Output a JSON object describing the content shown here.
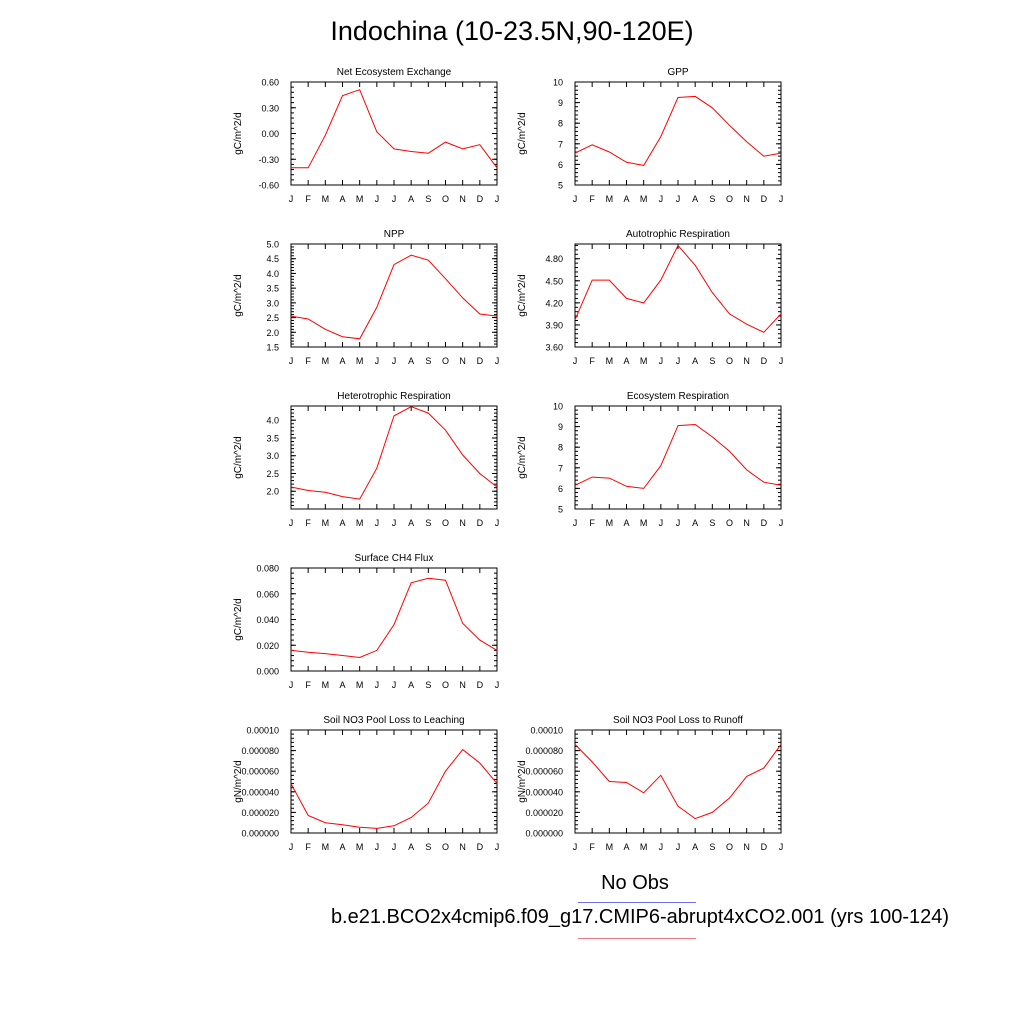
{
  "title": "Indochina (10-23.5N,90-120E)",
  "legend": {
    "obs_label": "No Obs",
    "model_label": "b.e21.BCO2x4cmip6.f09_g17.CMIP6-abrupt4xCO2.001 (yrs 100-124)",
    "obs_color": "#6f72e6",
    "model_color": "#f07a86"
  },
  "line_color": "#ff0000",
  "chart_data": [
    {
      "type": "line",
      "title": "Net Ecosystem Exchange",
      "ylabel": "gC/m^2/d",
      "categories": [
        "J",
        "F",
        "M",
        "A",
        "M",
        "J",
        "J",
        "A",
        "S",
        "O",
        "N",
        "D",
        "J"
      ],
      "values": [
        -0.4,
        -0.4,
        -0.02,
        0.44,
        0.51,
        0.02,
        -0.18,
        -0.21,
        -0.23,
        -0.1,
        -0.18,
        -0.13,
        -0.4
      ],
      "ylim": [
        -0.6,
        0.6
      ],
      "yticks": [
        "-0.60",
        "-0.30",
        "0.00",
        "0.30",
        "0.60"
      ]
    },
    {
      "type": "line",
      "title": "GPP",
      "ylabel": "gC/m^2/d",
      "categories": [
        "J",
        "F",
        "M",
        "A",
        "M",
        "J",
        "J",
        "A",
        "S",
        "O",
        "N",
        "D",
        "J"
      ],
      "values": [
        6.55,
        6.95,
        6.6,
        6.1,
        5.95,
        7.35,
        9.25,
        9.3,
        8.75,
        7.9,
        7.1,
        6.4,
        6.55
      ],
      "ylim": [
        5,
        10
      ],
      "yticks": [
        "5",
        "6",
        "7",
        "8",
        "9",
        "10"
      ]
    },
    {
      "type": "line",
      "title": "NPP",
      "ylabel": "gC/m^2/d",
      "categories": [
        "J",
        "F",
        "M",
        "A",
        "M",
        "J",
        "J",
        "A",
        "S",
        "O",
        "N",
        "D",
        "J"
      ],
      "values": [
        2.55,
        2.45,
        2.1,
        1.85,
        1.78,
        2.85,
        4.3,
        4.62,
        4.45,
        3.82,
        3.17,
        2.62,
        2.55
      ],
      "ylim": [
        1.5,
        5.0
      ],
      "yticks": [
        "1.5",
        "2.0",
        "2.5",
        "3.0",
        "3.5",
        "4.0",
        "4.5",
        "5.0"
      ]
    },
    {
      "type": "line",
      "title": "Autotrophic Respiration",
      "ylabel": "gC/m^2/d",
      "categories": [
        "J",
        "F",
        "M",
        "A",
        "M",
        "J",
        "J",
        "A",
        "S",
        "O",
        "N",
        "D",
        "J"
      ],
      "values": [
        3.97,
        4.51,
        4.51,
        4.26,
        4.2,
        4.51,
        4.98,
        4.71,
        4.34,
        4.05,
        3.91,
        3.8,
        4.05
      ],
      "ylim": [
        3.6,
        5.0
      ],
      "yticks": [
        "3.60",
        "3.90",
        "4.20",
        "4.50",
        "4.80"
      ]
    },
    {
      "type": "line",
      "title": "Heterotrophic Respiration",
      "ylabel": "gC/m^2/d",
      "categories": [
        "J",
        "F",
        "M",
        "A",
        "M",
        "J",
        "J",
        "A",
        "S",
        "O",
        "N",
        "D",
        "J"
      ],
      "values": [
        2.12,
        2.02,
        1.97,
        1.85,
        1.78,
        2.65,
        4.12,
        4.38,
        4.2,
        3.72,
        3.02,
        2.5,
        2.12
      ],
      "ylim": [
        1.5,
        4.4
      ],
      "yticks": [
        "2.0",
        "2.5",
        "3.0",
        "3.5",
        "4.0"
      ]
    },
    {
      "type": "line",
      "title": "Ecosystem Respiration",
      "ylabel": "gC/m^2/d",
      "categories": [
        "J",
        "F",
        "M",
        "A",
        "M",
        "J",
        "J",
        "A",
        "S",
        "O",
        "N",
        "D",
        "J"
      ],
      "values": [
        6.15,
        6.55,
        6.5,
        6.1,
        6.0,
        7.1,
        9.05,
        9.1,
        8.5,
        7.8,
        6.9,
        6.3,
        6.15
      ],
      "ylim": [
        5,
        10
      ],
      "yticks": [
        "5",
        "6",
        "7",
        "8",
        "9",
        "10"
      ]
    },
    {
      "type": "line",
      "title": "Surface CH4 Flux",
      "ylabel": "gC/m^2/d",
      "categories": [
        "J",
        "F",
        "M",
        "A",
        "M",
        "J",
        "J",
        "A",
        "S",
        "O",
        "N",
        "D",
        "J"
      ],
      "values": [
        0.016,
        0.0145,
        0.0135,
        0.012,
        0.0105,
        0.016,
        0.036,
        0.0685,
        0.072,
        0.0705,
        0.037,
        0.024,
        0.016
      ],
      "ylim": [
        0.0,
        0.08
      ],
      "yticks": [
        "0.000",
        "0.020",
        "0.040",
        "0.060",
        "0.080"
      ]
    },
    {
      "type": "line",
      "title": "Soil NO3 Pool Loss to Leaching",
      "ylabel": "gN/m^2/d",
      "categories": [
        "J",
        "F",
        "M",
        "A",
        "M",
        "J",
        "J",
        "A",
        "S",
        "O",
        "N",
        "D",
        "J"
      ],
      "values": [
        4.8e-05,
        1.7e-05,
        1e-05,
        8e-06,
        5.5e-06,
        4.5e-06,
        7e-06,
        1.5e-05,
        2.9e-05,
        6e-05,
        8.1e-05,
        6.8e-05,
        4.8e-05
      ],
      "ylim": [
        0,
        0.0001
      ],
      "yticks": [
        "0.000000",
        "0.000020",
        "0.000040",
        "0.000060",
        "0.000080",
        "0.00010"
      ]
    },
    {
      "type": "line",
      "title": "Soil NO3 Pool Loss to Runoff",
      "ylabel": "gN/m^2/d",
      "categories": [
        "J",
        "F",
        "M",
        "A",
        "M",
        "J",
        "J",
        "A",
        "S",
        "O",
        "N",
        "D",
        "J"
      ],
      "values": [
        8.6e-05,
        6.9e-05,
        5e-05,
        4.9e-05,
        3.9e-05,
        5.6e-05,
        2.6e-05,
        1.4e-05,
        2e-05,
        3.4e-05,
        5.5e-05,
        6.3e-05,
        8.6e-05
      ],
      "ylim": [
        0,
        0.0001
      ],
      "yticks": [
        "0.000000",
        "0.000020",
        "0.000040",
        "0.000060",
        "0.000080",
        "0.00010"
      ]
    }
  ]
}
